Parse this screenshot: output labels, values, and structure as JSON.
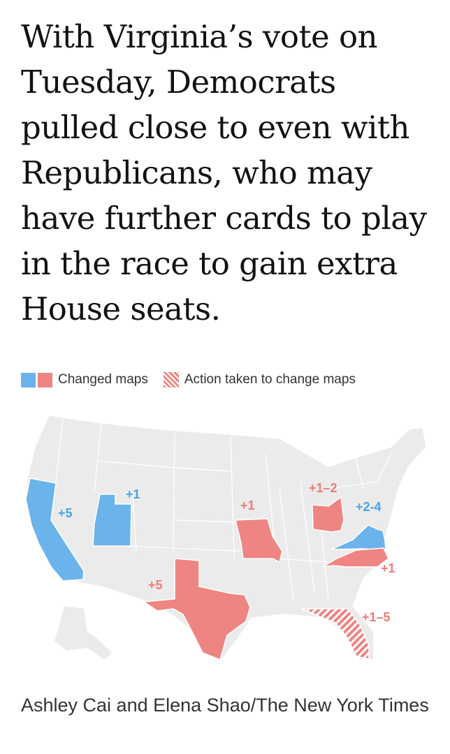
{
  "headline": "With Virginia’s vote on Tuesday, Democrats pulled close to even with Republicans, who may have further cards to play in the race to gain extra House seats.",
  "legend": {
    "changed_label": "Changed maps",
    "action_label": "Action taken to change maps"
  },
  "colors": {
    "democratic": "#6bb3eb",
    "republican": "#ee8582",
    "unchanged": "#ebebeb",
    "border": "#ffffff"
  },
  "states": [
    {
      "state": "California",
      "party": "democratic",
      "status": "changed",
      "seats": "+5"
    },
    {
      "state": "Utah",
      "party": "democratic",
      "status": "changed",
      "seats": "+1"
    },
    {
      "state": "Texas",
      "party": "republican",
      "status": "changed",
      "seats": "+5"
    },
    {
      "state": "Missouri",
      "party": "republican",
      "status": "changed",
      "seats": "+1"
    },
    {
      "state": "Ohio",
      "party": "republican",
      "status": "changed",
      "seats": "+1–2"
    },
    {
      "state": "Virginia",
      "party": "democratic",
      "status": "changed",
      "seats": "+2-4"
    },
    {
      "state": "North Carolina",
      "party": "republican",
      "status": "changed",
      "seats": "+1"
    },
    {
      "state": "Florida",
      "party": "republican",
      "status": "action taken",
      "seats": "+1–5"
    }
  ],
  "credit": "Ashley Cai and Elena Shao/The New York Times"
}
